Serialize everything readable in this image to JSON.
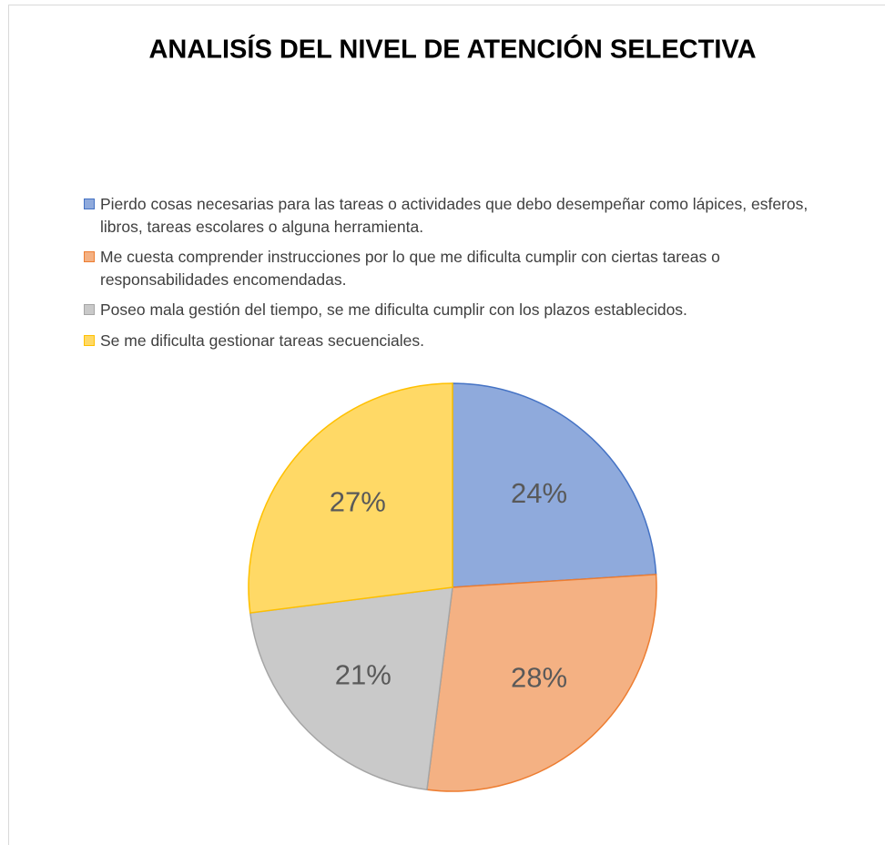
{
  "chart_data": {
    "type": "pie",
    "title": "ANALISÍS DEL NIVEL DE ATENCIÓN SELECTIVA",
    "categories": [
      "Pierdo cosas necesarias para las tareas o actividades que debo desempeñar como lápices, esferos, libros, tareas escolares o alguna herramienta.",
      "Me cuesta comprender instrucciones por lo que me dificulta cumplir con ciertas tareas o responsabilidades encomendadas.",
      "Poseo mala gestión del tiempo, se me dificulta cumplir con los plazos establecidos.",
      "Se me dificulta gestionar tareas secuenciales."
    ],
    "values": [
      24,
      28,
      21,
      27
    ],
    "value_labels": [
      "24%",
      "28%",
      "21%",
      "27%"
    ],
    "colors": [
      "#8faadc",
      "#f4b183",
      "#c9c9c9",
      "#ffd966"
    ],
    "edge_colors": [
      "#4472c4",
      "#ed7d31",
      "#a5a5a5",
      "#ffc000"
    ],
    "legend": "top"
  }
}
